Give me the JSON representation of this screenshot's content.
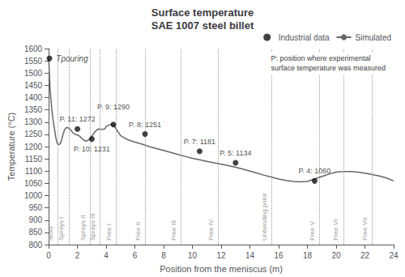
{
  "chart_data": {
    "type": "line",
    "title": "Surface temperature\nSAE 1007 steel billet",
    "xlabel": "Position from the meniscus (m)",
    "ylabel": "Temperature (°C)",
    "xlim": [
      0,
      24
    ],
    "ylim": [
      800,
      1600
    ],
    "xticks": [
      0,
      2,
      4,
      6,
      8,
      10,
      12,
      14,
      16,
      18,
      20,
      22,
      24
    ],
    "yticks": [
      800,
      850,
      900,
      950,
      1000,
      1050,
      1100,
      1150,
      1200,
      1250,
      1300,
      1350,
      1400,
      1450,
      1500,
      1550,
      1600
    ],
    "legend": "upper right",
    "series": [
      {
        "name": "Industrial data",
        "type": "scatter",
        "marker": "circle",
        "color": "#111111",
        "x": [
          0.05,
          2.0,
          3.0,
          4.5,
          6.7,
          10.5,
          13.0,
          18.5
        ],
        "values": [
          1560,
          1272,
          1231,
          1290,
          1251,
          1181,
          1134,
          1060
        ],
        "value_labels": [
          null,
          "P. 11: 1272",
          "P. 10: 1231",
          "P. 9: 1290",
          "P. 8: 1251",
          "P. 7: 1181",
          "P. 5: 1134",
          "P. 4: 1060"
        ]
      },
      {
        "name": "Simulated",
        "type": "line",
        "color": "#666666",
        "x": [
          0.0,
          0.05,
          0.1,
          0.2,
          0.3,
          0.4,
          0.5,
          0.6,
          0.7,
          0.8,
          0.9,
          1.0,
          1.1,
          1.2,
          1.3,
          1.5,
          1.7,
          1.9,
          2.0,
          2.2,
          2.4,
          2.6,
          2.8,
          3.0,
          3.2,
          3.4,
          3.5,
          3.7,
          3.9,
          4.0,
          4.2,
          4.4,
          4.6,
          4.8,
          5.0,
          5.5,
          6.0,
          6.5,
          7.0,
          7.5,
          8.0,
          8.5,
          9.0,
          9.5,
          10.0,
          10.5,
          11.0,
          11.5,
          12.0,
          12.5,
          13.0,
          13.5,
          14.0,
          14.5,
          15.0,
          15.5,
          16.0,
          16.5,
          17.0,
          17.5,
          18.0,
          18.2,
          18.4,
          18.5,
          18.7,
          18.9,
          19.2,
          19.5,
          20.0,
          20.5,
          21.0,
          21.5,
          22.0,
          22.5,
          23.0,
          23.5,
          24.0
        ],
        "values": [
          1560,
          1490,
          1430,
          1360,
          1310,
          1272,
          1235,
          1212,
          1208,
          1212,
          1228,
          1252,
          1268,
          1276,
          1278,
          1270,
          1255,
          1248,
          1248,
          1240,
          1228,
          1222,
          1228,
          1242,
          1260,
          1270,
          1272,
          1270,
          1272,
          1282,
          1288,
          1292,
          1280,
          1262,
          1245,
          1228,
          1218,
          1210,
          1200,
          1192,
          1184,
          1176,
          1168,
          1160,
          1152,
          1146,
          1140,
          1134,
          1128,
          1122,
          1116,
          1108,
          1100,
          1092,
          1083,
          1075,
          1068,
          1062,
          1058,
          1056,
          1058,
          1062,
          1066,
          1068,
          1072,
          1076,
          1082,
          1088,
          1096,
          1098,
          1098,
          1096,
          1092,
          1086,
          1080,
          1072,
          1060
        ]
      },
      {
        "type": "vline",
        "color": "#999999",
        "line_style": "dotted",
        "x": [
          0.65,
          1.4,
          2.9,
          3.55,
          4.7,
          6.7,
          9.2,
          11.8,
          15.5,
          18.85,
          20.5,
          22.5
        ],
        "labels": [
          "Mold",
          "Sprays I",
          "Sprays II",
          "Sprays III",
          "Free I",
          "Free II",
          "Free III",
          "Free IV",
          "Unbending point",
          "Free V",
          "Free VI",
          "Free VII"
        ]
      }
    ],
    "annotations": [
      {
        "text": "Tpouring",
        "x": 0.12,
        "y": 1558
      },
      {
        "text": "P: position where experimental\nsurface temperature was measured"
      }
    ]
  }
}
